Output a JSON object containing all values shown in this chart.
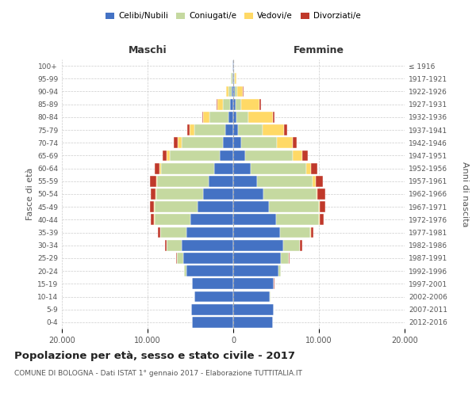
{
  "age_groups": [
    "0-4",
    "5-9",
    "10-14",
    "15-19",
    "20-24",
    "25-29",
    "30-34",
    "35-39",
    "40-44",
    "45-49",
    "50-54",
    "55-59",
    "60-64",
    "65-69",
    "70-74",
    "75-79",
    "80-84",
    "85-89",
    "90-94",
    "95-99",
    "100+"
  ],
  "birth_years": [
    "2012-2016",
    "2007-2011",
    "2002-2006",
    "1997-2001",
    "1992-1996",
    "1987-1991",
    "1982-1986",
    "1977-1981",
    "1972-1976",
    "1967-1971",
    "1962-1966",
    "1957-1961",
    "1952-1956",
    "1947-1951",
    "1942-1946",
    "1937-1941",
    "1932-1936",
    "1927-1931",
    "1922-1926",
    "1917-1921",
    "≤ 1916"
  ],
  "males": {
    "celibi": [
      4800,
      4900,
      4500,
      4800,
      5500,
      5800,
      6000,
      5500,
      5000,
      4200,
      3500,
      2900,
      2200,
      1600,
      1200,
      900,
      600,
      350,
      200,
      120,
      50
    ],
    "coniugati": [
      0,
      0,
      10,
      50,
      200,
      800,
      1800,
      3000,
      4200,
      5000,
      5500,
      6000,
      6200,
      5800,
      4800,
      3600,
      2200,
      900,
      400,
      120,
      30
    ],
    "vedovi": [
      0,
      0,
      0,
      0,
      5,
      5,
      5,
      10,
      20,
      30,
      50,
      100,
      200,
      350,
      500,
      600,
      700,
      600,
      200,
      40,
      10
    ],
    "divorziati": [
      0,
      0,
      0,
      10,
      30,
      80,
      150,
      300,
      400,
      500,
      600,
      700,
      600,
      500,
      400,
      300,
      150,
      80,
      50,
      20,
      5
    ]
  },
  "females": {
    "nubili": [
      4600,
      4700,
      4300,
      4700,
      5300,
      5600,
      5800,
      5500,
      5000,
      4200,
      3500,
      2800,
      2000,
      1400,
      900,
      600,
      400,
      300,
      200,
      100,
      50
    ],
    "coniugate": [
      0,
      0,
      10,
      60,
      250,
      900,
      2000,
      3500,
      5000,
      5800,
      6200,
      6500,
      6500,
      5500,
      4200,
      2800,
      1400,
      600,
      250,
      80,
      20
    ],
    "vedove": [
      0,
      0,
      0,
      0,
      5,
      10,
      15,
      30,
      50,
      80,
      150,
      300,
      600,
      1200,
      1800,
      2500,
      2800,
      2200,
      700,
      150,
      20
    ],
    "divorziate": [
      0,
      0,
      0,
      10,
      40,
      100,
      200,
      350,
      500,
      700,
      900,
      900,
      700,
      600,
      500,
      400,
      250,
      100,
      60,
      20,
      5
    ]
  },
  "colors": {
    "celibi": "#4472C4",
    "coniugati": "#C5D9A0",
    "vedovi": "#FFD966",
    "divorziati": "#C0392B"
  },
  "legend_labels": [
    "Celibi/Nubili",
    "Coniugati/e",
    "Vedovi/e",
    "Divorziati/e"
  ],
  "title": "Popolazione per età, sesso e stato civile - 2017",
  "subtitle": "COMUNE DI BOLOGNA - Dati ISTAT 1° gennaio 2017 - Elaborazione TUTTITALIA.IT",
  "label_maschi": "Maschi",
  "label_femmine": "Femmine",
  "ylabel_left": "Fasce di età",
  "ylabel_right": "Anni di nascita",
  "xlim": 20000,
  "xtick_vals": [
    -20000,
    -10000,
    0,
    10000,
    20000
  ],
  "xtick_labels": [
    "20.000",
    "10.000",
    "0",
    "10.000",
    "20.000"
  ],
  "background_color": "#ffffff",
  "grid_color": "#cccccc",
  "text_color": "#555555",
  "bar_edge_color": "white",
  "center_line_color": "#aaaaaa"
}
